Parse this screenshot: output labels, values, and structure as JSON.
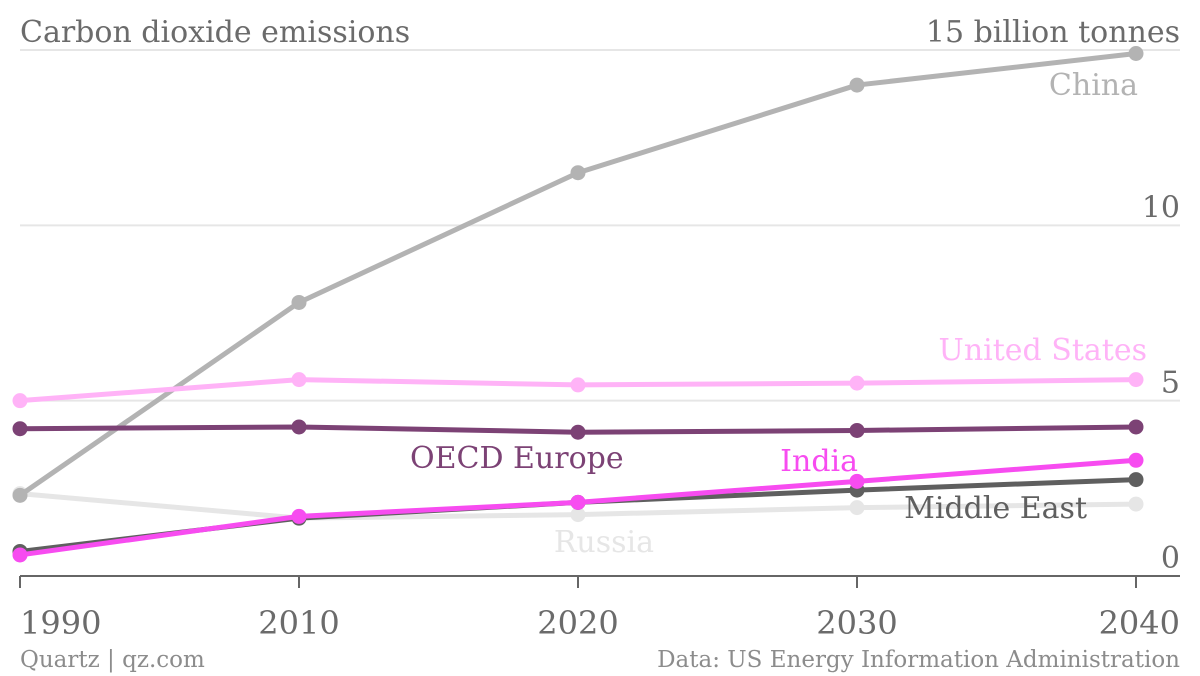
{
  "chart_data": {
    "type": "line",
    "title": "Carbon dioxide emissions",
    "y_unit_label": "15 billion tonnes",
    "x": [
      "1990",
      "2010",
      "2020",
      "2030",
      "2040"
    ],
    "ylim": [
      0,
      15
    ],
    "yticks": [
      "0",
      "5",
      "10"
    ],
    "grid": true,
    "series": [
      {
        "name": "China",
        "values": [
          2.3,
          7.8,
          11.5,
          14.0,
          14.9
        ],
        "color": "#b3b3b3"
      },
      {
        "name": "United States",
        "values": [
          5.0,
          5.6,
          5.45,
          5.5,
          5.6
        ],
        "color": "#ffb3f7"
      },
      {
        "name": "OECD Europe",
        "values": [
          4.2,
          4.25,
          4.1,
          4.15,
          4.25
        ],
        "color": "#7c4275"
      },
      {
        "name": "India",
        "values": [
          0.6,
          1.7,
          2.1,
          2.7,
          3.3
        ],
        "color": "#f74cf0"
      },
      {
        "name": "Middle East",
        "values": [
          0.7,
          1.65,
          2.1,
          2.45,
          2.75
        ],
        "color": "#5f5f5f"
      },
      {
        "name": "Russia",
        "values": [
          2.35,
          1.65,
          1.75,
          1.95,
          2.05
        ],
        "color": "#e6e6e6"
      }
    ]
  },
  "footer": {
    "source_left": "Quartz | qz.com",
    "source_right": "Data: US Energy Information Administration"
  }
}
